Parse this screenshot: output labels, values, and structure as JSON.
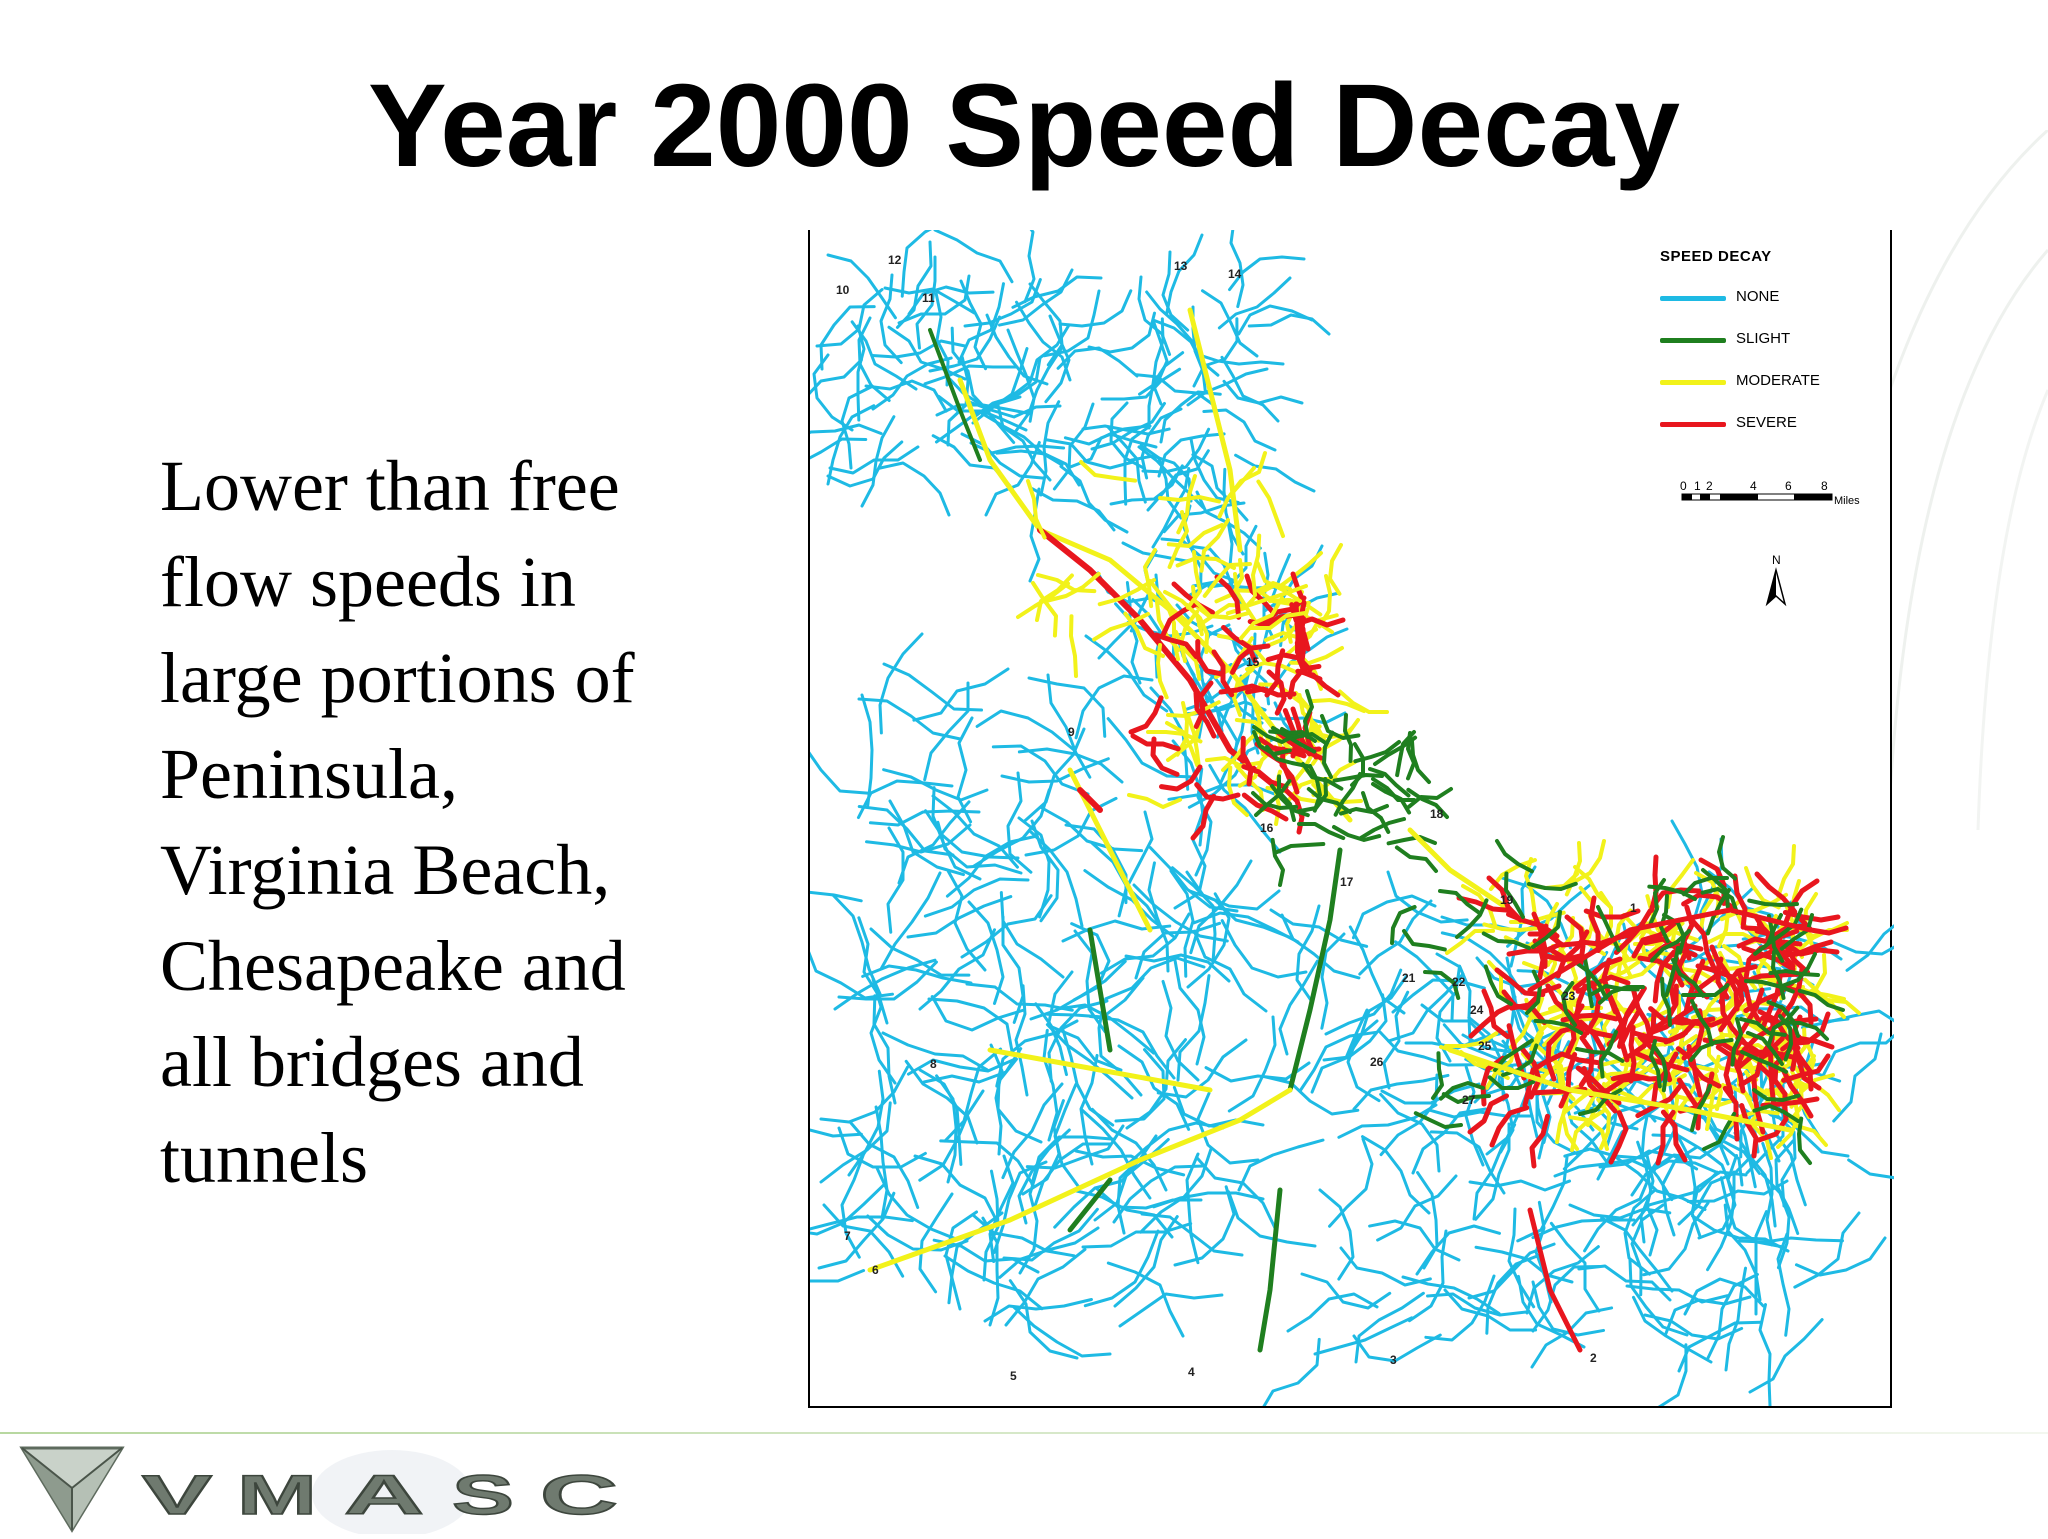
{
  "slide": {
    "title": "Year 2000 Speed Decay",
    "body": "Lower than free\nflow speeds in\nlarge portions of\nPeninsula,\nVirginia Beach,\nChesapeake and\nall bridges and\ntunnels"
  },
  "map": {
    "legend": {
      "title": "SPEED DECAY",
      "items": [
        {
          "label": "NONE",
          "color": "#1ebae4"
        },
        {
          "label": "SLIGHT",
          "color": "#1f7f1f"
        },
        {
          "label": "MODERATE",
          "color": "#f2f21a"
        },
        {
          "label": "SEVERE",
          "color": "#e8161e"
        }
      ]
    },
    "scale": {
      "ticks": [
        "0",
        "1",
        "2",
        "4",
        "6",
        "8"
      ],
      "unit": "Miles"
    },
    "north_label": "N",
    "zone_labels": [
      "1",
      "2",
      "3",
      "4",
      "5",
      "6",
      "7",
      "8",
      "9",
      "10",
      "11",
      "12",
      "13",
      "14",
      "15",
      "16",
      "17",
      "18",
      "19",
      "21",
      "22",
      "23",
      "24",
      "25",
      "26",
      "27"
    ]
  },
  "logo": {
    "letters": [
      "V",
      "M",
      "A",
      "S",
      "C"
    ],
    "icon": "triangle-logo-icon"
  }
}
